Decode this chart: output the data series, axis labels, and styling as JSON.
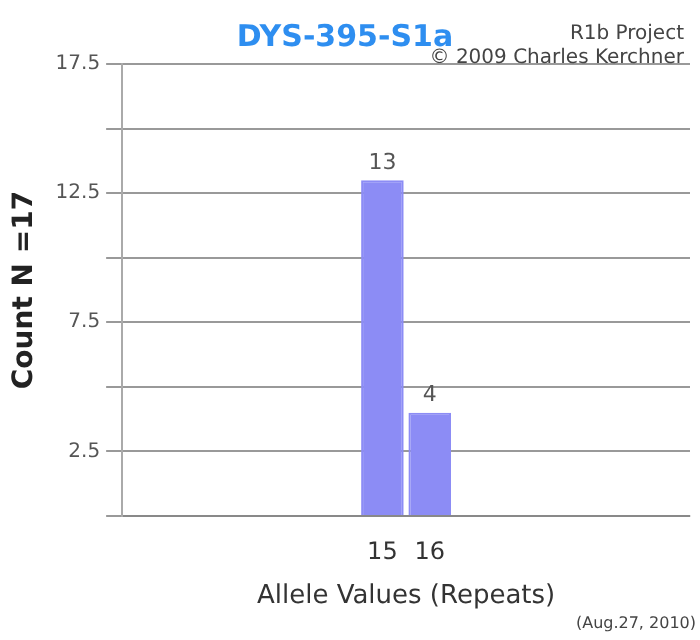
{
  "chart_data": {
    "type": "bar",
    "title": "DYS-395-S1a",
    "xlabel": "Allele Values (Repeats)",
    "ylabel": "Count N =17",
    "annotations": [
      "R1b Project",
      "© 2009 Charles Kerchner",
      "(Aug.27, 2010)"
    ],
    "categories": [
      null,
      null,
      null,
      null,
      null,
      "15",
      "16",
      null,
      null,
      null,
      null,
      null
    ],
    "values": [
      null,
      null,
      null,
      null,
      null,
      13,
      4,
      null,
      null,
      null,
      null,
      null
    ],
    "color": "#8c8cf5",
    "data_labels": true,
    "grid": "y",
    "ylim": [
      0,
      17.5
    ],
    "yticks": [
      {
        "value": 0,
        "label": null
      },
      2.5,
      {
        "value": 5,
        "label": null
      },
      7.5,
      {
        "value": 10,
        "label": null
      },
      12.5,
      {
        "value": 15,
        "label": null
      },
      17.5
    ]
  }
}
